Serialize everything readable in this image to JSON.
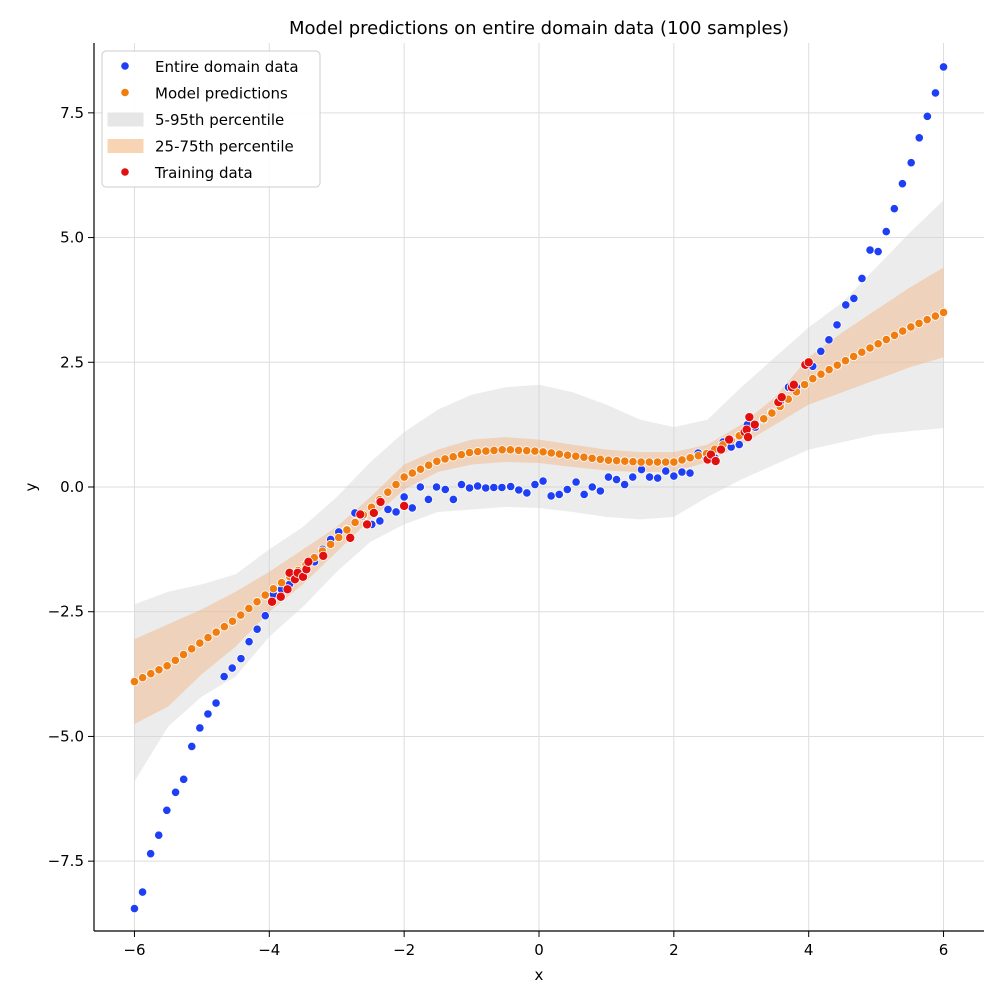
{
  "chart_data": {
    "type": "scatter",
    "title": "Model predictions on entire domain data (100 samples)",
    "xlabel": "x",
    "ylabel": "y",
    "xlim": [
      -6.6,
      6.6
    ],
    "ylim": [
      -8.9,
      8.9
    ],
    "xticks": [
      -6,
      -4,
      -2,
      0,
      2,
      4,
      6
    ],
    "xtick_labels": [
      "−6",
      "−4",
      "−2",
      "0",
      "2",
      "4",
      "6"
    ],
    "yticks": [
      -7.5,
      -5.0,
      -2.5,
      0.0,
      2.5,
      5.0,
      7.5
    ],
    "ytick_labels": [
      "−7.5",
      "−5.0",
      "−2.5",
      "0.0",
      "2.5",
      "5.0",
      "7.5"
    ],
    "grid": true,
    "legend_position": "top-left",
    "legend": [
      {
        "label": "Entire domain data",
        "kind": "dot",
        "color": "#1f3ff5"
      },
      {
        "label": "Model predictions",
        "kind": "dot",
        "color": "#f07d0f"
      },
      {
        "label": "5-95th percentile",
        "kind": "band",
        "color": "#e6e6e6"
      },
      {
        "label": "25-75th percentile",
        "kind": "band",
        "color": "#f9d4b4"
      },
      {
        "label": "Training data",
        "kind": "dot",
        "color": "#e20f0f"
      }
    ],
    "colors": {
      "domain": "#1f3ff5",
      "prediction": "#f07d0f",
      "training": "#e20f0f",
      "band_outer": "#d4d4d4",
      "band_inner": "#f4a460",
      "grid": "#dddddd"
    },
    "band_x": [
      -6,
      -5.5,
      -5,
      -4.5,
      -4,
      -3.5,
      -3,
      -2.5,
      -2,
      -1.5,
      -1,
      -0.5,
      0,
      0.5,
      1,
      1.5,
      2,
      2.5,
      3,
      3.5,
      4,
      4.5,
      5,
      5.5,
      6
    ],
    "band_5": [
      -5.9,
      -4.8,
      -4.2,
      -3.8,
      -3.0,
      -2.4,
      -1.7,
      -1.1,
      -0.75,
      -0.5,
      -0.45,
      -0.4,
      -0.42,
      -0.5,
      -0.6,
      -0.65,
      -0.6,
      -0.2,
      0.15,
      0.45,
      0.75,
      0.9,
      1.05,
      1.12,
      1.18
    ],
    "band_25": [
      -4.75,
      -4.4,
      -3.75,
      -3.2,
      -2.5,
      -1.95,
      -1.3,
      -0.65,
      -0.05,
      0.3,
      0.45,
      0.5,
      0.48,
      0.4,
      0.33,
      0.3,
      0.3,
      0.5,
      0.85,
      1.25,
      1.65,
      1.9,
      2.15,
      2.4,
      2.6
    ],
    "band_75": [
      -3.05,
      -2.75,
      -2.45,
      -2.1,
      -1.7,
      -1.25,
      -0.8,
      -0.2,
      0.45,
      0.75,
      0.95,
      1.0,
      0.95,
      0.85,
      0.75,
      0.7,
      0.7,
      0.85,
      1.25,
      1.8,
      2.6,
      3.1,
      3.55,
      4.0,
      4.4
    ],
    "band_95": [
      -2.35,
      -2.1,
      -1.95,
      -1.75,
      -1.25,
      -0.8,
      -0.2,
      0.5,
      1.1,
      1.55,
      1.85,
      2.0,
      2.05,
      1.9,
      1.65,
      1.35,
      1.2,
      1.35,
      2.0,
      2.6,
      3.2,
      3.7,
      4.4,
      5.1,
      5.75
    ],
    "prediction_samples": 100,
    "domain_points": [
      [
        -6.0,
        -8.45
      ],
      [
        -5.88,
        -8.12
      ],
      [
        -5.76,
        -7.35
      ],
      [
        -5.64,
        -6.98
      ],
      [
        -5.52,
        -6.48
      ],
      [
        -5.39,
        -6.12
      ],
      [
        -5.27,
        -5.86
      ],
      [
        -5.15,
        -5.2
      ],
      [
        -5.03,
        -4.83
      ],
      [
        -4.91,
        -4.55
      ],
      [
        -4.79,
        -4.33
      ],
      [
        -4.67,
        -3.8
      ],
      [
        -4.55,
        -3.63
      ],
      [
        -4.42,
        -3.44
      ],
      [
        -4.3,
        -3.1
      ],
      [
        -4.18,
        -2.85
      ],
      [
        -4.06,
        -2.58
      ],
      [
        -3.94,
        -2.15
      ],
      [
        -3.82,
        -2.05
      ],
      [
        -3.7,
        -1.95
      ],
      [
        -3.58,
        -1.75
      ],
      [
        -3.45,
        -1.65
      ],
      [
        -3.33,
        -1.5
      ],
      [
        -3.21,
        -1.25
      ],
      [
        -3.09,
        -1.05
      ],
      [
        -2.97,
        -0.9
      ],
      [
        -2.85,
        -0.85
      ],
      [
        -2.73,
        -0.52
      ],
      [
        -2.61,
        -0.58
      ],
      [
        -2.48,
        -0.75
      ],
      [
        -2.36,
        -0.68
      ],
      [
        -2.24,
        -0.45
      ],
      [
        -2.12,
        -0.5
      ],
      [
        -2.0,
        -0.2
      ],
      [
        -1.88,
        -0.42
      ],
      [
        -1.76,
        0.0
      ],
      [
        -1.64,
        -0.25
      ],
      [
        -1.52,
        0.0
      ],
      [
        -1.39,
        -0.05
      ],
      [
        -1.27,
        -0.25
      ],
      [
        -1.15,
        0.05
      ],
      [
        -1.03,
        -0.02
      ],
      [
        -0.91,
        0.02
      ],
      [
        -0.79,
        -0.02
      ],
      [
        -0.67,
        -0.01
      ],
      [
        -0.55,
        -0.01
      ],
      [
        -0.42,
        0.01
      ],
      [
        -0.3,
        -0.06
      ],
      [
        -0.18,
        -0.12
      ],
      [
        -0.06,
        0.05
      ],
      [
        0.06,
        0.12
      ],
      [
        0.18,
        -0.18
      ],
      [
        0.3,
        -0.15
      ],
      [
        0.42,
        -0.05
      ],
      [
        0.55,
        0.1
      ],
      [
        0.67,
        -0.15
      ],
      [
        0.79,
        0.0
      ],
      [
        0.91,
        -0.08
      ],
      [
        1.03,
        0.2
      ],
      [
        1.15,
        0.15
      ],
      [
        1.27,
        0.05
      ],
      [
        1.39,
        0.2
      ],
      [
        1.52,
        0.35
      ],
      [
        1.64,
        0.2
      ],
      [
        1.76,
        0.18
      ],
      [
        1.88,
        0.32
      ],
      [
        2.0,
        0.22
      ],
      [
        2.12,
        0.3
      ],
      [
        2.24,
        0.28
      ],
      [
        2.36,
        0.68
      ],
      [
        2.48,
        0.58
      ],
      [
        2.61,
        0.58
      ],
      [
        2.73,
        0.9
      ],
      [
        2.85,
        0.8
      ],
      [
        2.97,
        0.85
      ],
      [
        3.09,
        1.25
      ],
      [
        3.21,
        1.2
      ],
      [
        3.33,
        1.35
      ],
      [
        3.45,
        1.5
      ],
      [
        3.58,
        1.7
      ],
      [
        3.7,
        2.0
      ],
      [
        3.82,
        2.0
      ],
      [
        3.94,
        2.05
      ],
      [
        4.06,
        2.42
      ],
      [
        4.18,
        2.72
      ],
      [
        4.3,
        2.95
      ],
      [
        4.42,
        3.25
      ],
      [
        4.55,
        3.65
      ],
      [
        4.67,
        3.78
      ],
      [
        4.79,
        4.18
      ],
      [
        4.91,
        4.75
      ],
      [
        5.03,
        4.72
      ],
      [
        5.15,
        5.12
      ],
      [
        5.27,
        5.58
      ],
      [
        5.39,
        6.08
      ],
      [
        5.52,
        6.5
      ],
      [
        5.64,
        7.0
      ],
      [
        5.76,
        7.43
      ],
      [
        5.88,
        7.9
      ],
      [
        6.0,
        8.42
      ]
    ],
    "training_points": [
      [
        -3.96,
        -2.3
      ],
      [
        -3.83,
        -2.2
      ],
      [
        -3.73,
        -2.05
      ],
      [
        -3.7,
        -1.72
      ],
      [
        -3.62,
        -1.85
      ],
      [
        -3.58,
        -1.72
      ],
      [
        -3.5,
        -1.8
      ],
      [
        -3.45,
        -1.65
      ],
      [
        -3.42,
        -1.5
      ],
      [
        -3.2,
        -1.38
      ],
      [
        -2.8,
        -1.02
      ],
      [
        -2.65,
        -0.55
      ],
      [
        -2.55,
        -0.75
      ],
      [
        -2.45,
        -0.52
      ],
      [
        -2.35,
        -0.3
      ],
      [
        -2.0,
        -0.38
      ],
      [
        2.5,
        0.55
      ],
      [
        2.55,
        0.65
      ],
      [
        2.62,
        0.52
      ],
      [
        2.7,
        0.75
      ],
      [
        2.82,
        0.95
      ],
      [
        3.05,
        1.1
      ],
      [
        3.08,
        1.15
      ],
      [
        3.1,
        1.0
      ],
      [
        3.12,
        1.4
      ],
      [
        3.2,
        1.25
      ],
      [
        3.55,
        1.7
      ],
      [
        3.6,
        1.8
      ],
      [
        3.75,
        2.0
      ],
      [
        3.78,
        2.05
      ],
      [
        3.95,
        2.45
      ],
      [
        4.0,
        2.5
      ]
    ]
  }
}
